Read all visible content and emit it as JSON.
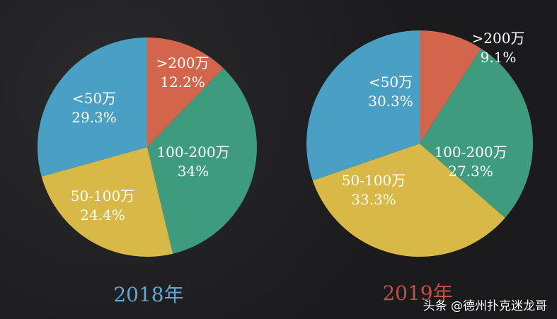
{
  "colors": {
    "under_50": "#4aa0c4",
    "over_200": "#d4654d",
    "r100_200": "#3f9b7e",
    "r50_100": "#d8b846",
    "year_2018": "#5aaad3",
    "year_2019": "#c2504a"
  },
  "chart_data": [
    {
      "type": "pie",
      "year_label": "2018年",
      "slices": [
        {
          "label": ">200万",
          "value": 12.2,
          "value_text": "12.2%",
          "color_key": "over_200"
        },
        {
          "label": "100-200万",
          "value": 34,
          "value_text": "34%",
          "color_key": "r100_200"
        },
        {
          "label": "50-100万",
          "value": 24.4,
          "value_text": "24.4%",
          "color_key": "r50_100"
        },
        {
          "label": "<50万",
          "value": 29.3,
          "value_text": "29.3%",
          "color_key": "under_50"
        }
      ]
    },
    {
      "type": "pie",
      "year_label": "2019年",
      "slices": [
        {
          "label": ">200万",
          "value": 9.1,
          "value_text": "9.1%",
          "color_key": "over_200"
        },
        {
          "label": "100-200万",
          "value": 27.3,
          "value_text": "27.3%",
          "color_key": "r100_200"
        },
        {
          "label": "50-100万",
          "value": 33.3,
          "value_text": "33.3%",
          "color_key": "r50_100"
        },
        {
          "label": "<50万",
          "value": 30.3,
          "value_text": "30.3%",
          "color_key": "under_50"
        }
      ]
    }
  ],
  "watermark": "头条 @德州扑克迷龙哥"
}
